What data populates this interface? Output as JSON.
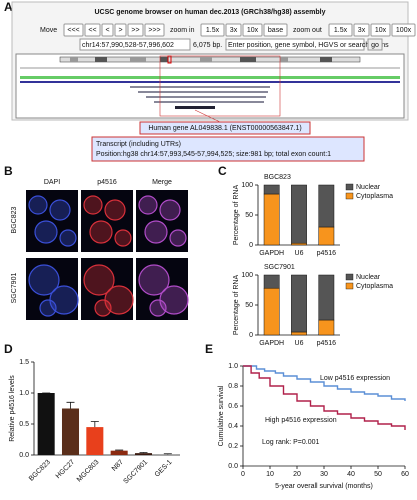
{
  "panel_labels": [
    "A",
    "B",
    "C",
    "D",
    "E"
  ],
  "panel_a": {
    "title": "UCSC genome browser on human dec.2013 (GRCh38/hg38) assembly",
    "move_label": "Move",
    "move_buttons": [
      "<<<",
      "<<",
      "<",
      ">",
      ">>",
      ">>>"
    ],
    "zoom_in_label": "zoom in",
    "zoom_in_buttons": [
      "1.5x",
      "3x",
      "10x",
      "base"
    ],
    "zoom_out_label": "zoom out",
    "zoom_out_buttons": [
      "1.5x",
      "3x",
      "10x",
      "100x"
    ],
    "position": "chr14:57,990,528-57,996,602",
    "size": "6,075 bp.",
    "search_placeholder": "Enter position, gene symbol, HGVS or search terms",
    "go": "go",
    "gene": "Human gene AL049838.1 (ENST00000563847.1)",
    "transcript_title": "Transcript (including UTRs)",
    "transcript_position": "Position:hg38 chr14:57,993,545-57,994,525; size:981 bp; total exon count:1"
  },
  "panel_b": {
    "columns": [
      "DAPI",
      "p4516",
      "Merge"
    ],
    "rows": [
      "BGC823",
      "SGC7901"
    ]
  },
  "chart_data": [
    {
      "type": "stacked_bar",
      "title": "BGC823",
      "y_label": "Percentage of RNA",
      "categories": [
        "GAPDH",
        "U6",
        "p4516"
      ],
      "series": [
        {
          "name": "Nuclear",
          "color": "#555555",
          "values": [
            15,
            97,
            70
          ]
        },
        {
          "name": "Cytoplasma",
          "color": "#f7941d",
          "values": [
            85,
            3,
            30
          ]
        }
      ],
      "ylim": [
        0,
        100
      ],
      "yticks": [
        0,
        50,
        100
      ]
    },
    {
      "type": "stacked_bar",
      "title": "SGC7901",
      "y_label": "Percentage of RNA",
      "categories": [
        "GAPDH",
        "U6",
        "p4516"
      ],
      "series": [
        {
          "name": "Nuclear",
          "color": "#555555",
          "values": [
            22,
            95,
            75
          ]
        },
        {
          "name": "Cytoplasma",
          "color": "#f7941d",
          "values": [
            78,
            5,
            25
          ]
        }
      ],
      "ylim": [
        0,
        100
      ],
      "yticks": [
        0,
        50,
        100
      ]
    },
    {
      "type": "bar",
      "y_label": "Relative p4516 levels",
      "categories": [
        "BGC823",
        "HGC27",
        "MGC803",
        "N87",
        "SGC7901",
        "GES-1"
      ],
      "values": [
        1.0,
        0.75,
        0.45,
        0.07,
        0.03,
        0.01
      ],
      "errors": [
        0.0,
        0.1,
        0.09,
        0.01,
        0.01,
        0.01
      ],
      "colors": [
        "#111111",
        "#5a2e1a",
        "#e8401c",
        "#8b2a10",
        "#3a1a10",
        "#777777"
      ],
      "ylim": [
        0,
        1.5
      ],
      "yticks": [
        {
          "value": 0,
          "label": "0.0"
        },
        {
          "value": 0.5,
          "label": "0.5"
        },
        {
          "value": 1,
          "label": "1.0"
        },
        {
          "value": 1.5,
          "label": "1.5"
        }
      ]
    },
    {
      "type": "step",
      "x_label": "5-year overall survival (months)",
      "y_label": "Cumulative survival",
      "series": [
        {
          "color": "#5b8fd6",
          "x": [
            0,
            5,
            8,
            12,
            15,
            20,
            25,
            30,
            35,
            40,
            45,
            50,
            55,
            60
          ],
          "values": [
            1,
            0.97,
            0.95,
            0.93,
            0.9,
            0.87,
            0.84,
            0.8,
            0.77,
            0.74,
            0.72,
            0.7,
            0.67,
            0.65
          ]
        },
        {
          "color": "#b0204a",
          "x": [
            0,
            3,
            6,
            10,
            15,
            20,
            25,
            30,
            35,
            40,
            45,
            50,
            55,
            60
          ],
          "values": [
            1,
            0.93,
            0.88,
            0.8,
            0.72,
            0.65,
            0.6,
            0.55,
            0.52,
            0.48,
            0.45,
            0.42,
            0.4,
            0.36
          ]
        }
      ],
      "annotations": [
        "Low p4516 expression",
        "High p4516 expression",
        "Log rank: P=0.001"
      ],
      "xlim": [
        0,
        60
      ],
      "xticks": [
        0,
        10,
        20,
        30,
        40,
        50,
        60
      ],
      "ylim": [
        0,
        1
      ],
      "yticks": [
        {
          "value": 0,
          "label": "0.0"
        },
        {
          "value": 0.2,
          "label": "0.2"
        },
        {
          "value": 0.4,
          "label": "0.4"
        },
        {
          "value": 0.6,
          "label": "0.6"
        },
        {
          "value": 0.8,
          "label": "0.8"
        },
        {
          "value": 1,
          "label": "1.0"
        }
      ]
    }
  ]
}
